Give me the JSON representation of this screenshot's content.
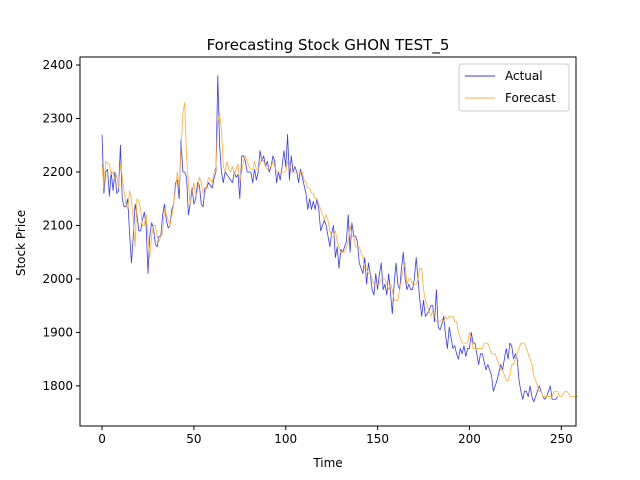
{
  "chart_data": {
    "type": "line",
    "title": "Forecasting Stock GHON TEST_5",
    "xlabel": "Time",
    "ylabel": "Stock Price",
    "xlim": [
      -12,
      258
    ],
    "ylim": [
      1725,
      2415
    ],
    "x_ticks": [
      0,
      50,
      100,
      150,
      200,
      250
    ],
    "y_ticks": [
      1800,
      1900,
      2000,
      2100,
      2200,
      2300,
      2400
    ],
    "grid": false,
    "legend_position": "top-right",
    "series": [
      {
        "name": "Actual",
        "color": "#3a3af0",
        "values": [
          2270,
          2160,
          2200,
          2205,
          2155,
          2200,
          2165,
          2200,
          2160,
          2165,
          2250,
          2150,
          2135,
          2135,
          2150,
          2085,
          2030,
          2080,
          2140,
          2120,
          2090,
          2090,
          2110,
          2125,
          2100,
          2010,
          2080,
          2105,
          2095,
          2065,
          2060,
          2080,
          2080,
          2120,
          2140,
          2110,
          2095,
          2100,
          2130,
          2140,
          2180,
          2185,
          2150,
          2260,
          2200,
          2200,
          2190,
          2120,
          2140,
          2170,
          2140,
          2150,
          2180,
          2175,
          2140,
          2135,
          2170,
          2170,
          2180,
          2175,
          2170,
          2190,
          2200,
          2380,
          2250,
          2200,
          2180,
          2200,
          2195,
          2190,
          2185,
          2180,
          2200,
          2190,
          2195,
          2150,
          2230,
          2230,
          2220,
          2200,
          2200,
          2200,
          2180,
          2205,
          2185,
          2200,
          2240,
          2220,
          2230,
          2210,
          2220,
          2200,
          2210,
          2230,
          2220,
          2180,
          2200,
          2185,
          2210,
          2240,
          2210,
          2270,
          2185,
          2230,
          2200,
          2210,
          2200,
          2180,
          2205,
          2190,
          2175,
          2160,
          2130,
          2150,
          2130,
          2145,
          2130,
          2150,
          2130,
          2090,
          2100,
          2110,
          2100,
          2080,
          2060,
          2085,
          2100,
          2040,
          2060,
          2020,
          2055,
          2050,
          2060,
          2070,
          2120,
          2050,
          2105,
          2080,
          2080,
          2070,
          2030,
          2020,
          2010,
          2040,
          1990,
          2030,
          2010,
          1980,
          1970,
          2010,
          1980,
          2010,
          2030,
          1980,
          1990,
          1970,
          2010,
          1975,
          1935,
          1990,
          2030,
          1990,
          1980,
          2020,
          2050,
          2000,
          1980,
          1990,
          1980,
          1980,
          2000,
          2040,
          2000,
          1960,
          1930,
          1960,
          1930,
          1935,
          1940,
          1950,
          1950,
          1920,
          1980,
          1910,
          1905,
          1915,
          1930,
          1895,
          1870,
          1910,
          1890,
          1870,
          1875,
          1860,
          1850,
          1870,
          1860,
          1875,
          1855,
          1870,
          1870,
          1900,
          1880,
          1880,
          1860,
          1840,
          1860,
          1860,
          1845,
          1830,
          1840,
          1830,
          1820,
          1790,
          1800,
          1810,
          1825,
          1840,
          1830,
          1850,
          1870,
          1850,
          1880,
          1875,
          1850,
          1860,
          1850,
          1810,
          1790,
          1775,
          1790,
          1790,
          1780,
          1800,
          1780,
          1770,
          1780,
          1790,
          1800,
          1790,
          1780,
          1775,
          1780,
          1790,
          1800,
          1775,
          1775,
          1775,
          1780
        ],
        "type": "line"
      },
      {
        "name": "Forecast",
        "color": "#ffad33",
        "values": [
          2215,
          2170,
          2220,
          2215,
          2215,
          2195,
          2200,
          2185,
          2195,
          2170,
          2215,
          2190,
          2165,
          2140,
          2130,
          2165,
          2150,
          2110,
          2060,
          2150,
          2145,
          2130,
          2100,
          2100,
          2120,
          2080,
          2040,
          2080,
          2100,
          2100,
          2080,
          2070,
          2080,
          2085,
          2130,
          2120,
          2110,
          2100,
          2120,
          2140,
          2170,
          2200,
          2170,
          2240,
          2310,
          2330,
          2230,
          2180,
          2140,
          2160,
          2180,
          2155,
          2165,
          2190,
          2180,
          2160,
          2160,
          2175,
          2190,
          2185,
          2180,
          2200,
          2210,
          2290,
          2310,
          2280,
          2210,
          2200,
          2220,
          2205,
          2200,
          2210,
          2195,
          2205,
          2215,
          2180,
          2200,
          2220,
          2230,
          2220,
          2210,
          2205,
          2205,
          2220,
          2205,
          2205,
          2215,
          2225,
          2220,
          2210,
          2205,
          2210,
          2210,
          2220,
          2210,
          2200,
          2200,
          2200,
          2200,
          2200,
          2200,
          2220,
          2220,
          2200,
          2200,
          2200,
          2200,
          2200,
          2200,
          2200,
          2185,
          2180,
          2170,
          2170,
          2160,
          2160,
          2150,
          2150,
          2140,
          2130,
          2120,
          2110,
          2120,
          2110,
          2090,
          2080,
          2080,
          2090,
          2070,
          2060,
          2050,
          2050,
          2050,
          2060,
          2070,
          2100,
          2080,
          2080,
          2060,
          2060,
          2060,
          2050,
          2040,
          2020,
          2020,
          2010,
          2010,
          2000,
          1990,
          1990,
          1990,
          1990,
          2000,
          2000,
          2000,
          1990,
          1980,
          1990,
          1980,
          1960,
          1960,
          1960,
          1980,
          2000,
          2020,
          2030,
          1990,
          2000,
          2000,
          1990,
          1990,
          1990,
          2000,
          2020,
          2020,
          1980,
          1960,
          1950,
          1940,
          1930,
          1940,
          1930,
          1920,
          1920,
          1920,
          1925,
          1920,
          1930,
          1925,
          1930,
          1930,
          1930,
          1920,
          1920,
          1900,
          1890,
          1880,
          1880,
          1880,
          1880,
          1900,
          1890,
          1870,
          1870,
          1870,
          1870,
          1870,
          1870,
          1880,
          1880,
          1880,
          1870,
          1860,
          1860,
          1860,
          1850,
          1840,
          1830,
          1830,
          1820,
          1810,
          1810,
          1820,
          1840,
          1840,
          1850,
          1860,
          1870,
          1880,
          1880,
          1880,
          1870,
          1860,
          1850,
          1840,
          1820,
          1810,
          1800,
          1790,
          1790,
          1780,
          1780,
          1780,
          1780,
          1780,
          1780,
          1790,
          1790,
          1790,
          1780,
          1780,
          1785,
          1790,
          1790,
          1785,
          1780,
          1780,
          1780,
          1780,
          1780
        ]
      }
    ]
  }
}
